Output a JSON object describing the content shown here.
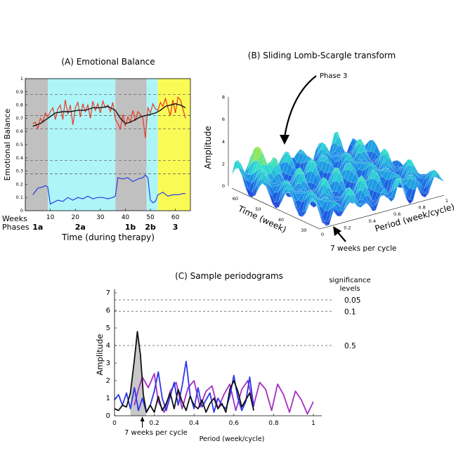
{
  "chart_data": [
    {
      "type": "line",
      "title": "(A) Emotional Balance",
      "xlabel": "Time (during therapy)",
      "ylabel": "Emotional Balance",
      "xlim": [
        0,
        66
      ],
      "ylim": [
        0,
        1
      ],
      "yticks": [
        "0",
        "0.1",
        "0.2",
        "0.3",
        "0.4",
        "0.5",
        "0.6",
        "0.7",
        "0.8",
        "0.9",
        "1"
      ],
      "xticks": [
        "10",
        "20",
        "30",
        "40",
        "50",
        "60"
      ],
      "weeks_label": "Weeks",
      "phases_label": "Phases",
      "phase_labels": [
        {
          "label": "1a",
          "center": 5
        },
        {
          "label": "2a",
          "center": 22
        },
        {
          "label": "1b",
          "center": 42
        },
        {
          "label": "2b",
          "center": 50
        },
        {
          "label": "3",
          "center": 60
        }
      ],
      "phase_bands": [
        {
          "from": 0,
          "to": 9,
          "color": "#c0c0c0"
        },
        {
          "from": 9,
          "to": 36,
          "color": "#aef5f8"
        },
        {
          "from": 36,
          "to": 48.5,
          "color": "#c0c0c0"
        },
        {
          "from": 48.5,
          "to": 53,
          "color": "#aef5f8"
        },
        {
          "from": 53,
          "to": 66,
          "color": "#fafa55"
        }
      ],
      "dashed_levels": [
        0.88,
        0.72,
        0.62,
        0.38,
        0.28
      ],
      "series": [
        {
          "name": "raw emotional balance",
          "color": "#e83a25",
          "x": [
            3,
            4,
            5,
            6,
            7,
            8,
            9,
            10,
            11,
            12,
            13,
            14,
            15,
            16,
            17,
            18,
            19,
            20,
            21,
            22,
            23,
            24,
            25,
            26,
            27,
            28,
            29,
            30,
            31,
            32,
            33,
            34,
            35,
            36,
            37,
            38,
            39,
            40,
            41,
            42,
            43,
            44,
            45,
            46,
            47,
            48,
            49,
            50,
            51,
            52,
            53,
            54,
            55,
            56,
            57,
            58,
            59,
            60,
            61,
            62,
            63,
            64
          ],
          "values": [
            0.66,
            0.67,
            0.62,
            0.7,
            0.67,
            0.74,
            0.71,
            0.75,
            0.78,
            0.69,
            0.77,
            0.8,
            0.69,
            0.84,
            0.73,
            0.8,
            0.65,
            0.78,
            0.82,
            0.71,
            0.81,
            0.75,
            0.8,
            0.7,
            0.83,
            0.76,
            0.81,
            0.74,
            0.83,
            0.78,
            0.8,
            0.75,
            0.82,
            0.69,
            0.66,
            0.62,
            0.73,
            0.64,
            0.71,
            0.67,
            0.76,
            0.68,
            0.75,
            0.73,
            0.7,
            0.55,
            0.78,
            0.74,
            0.81,
            0.77,
            0.76,
            0.82,
            0.79,
            0.85,
            0.78,
            0.72,
            0.84,
            0.74,
            0.86,
            0.84,
            0.77,
            0.7
          ]
        },
        {
          "name": "smoothed",
          "color": "#111111",
          "x": [
            3,
            6,
            9,
            12,
            15,
            18,
            21,
            24,
            27,
            30,
            33,
            36,
            38,
            40,
            42,
            44,
            46,
            48,
            50,
            52,
            54,
            56,
            58,
            60,
            62,
            64
          ],
          "values": [
            0.64,
            0.66,
            0.7,
            0.74,
            0.75,
            0.75,
            0.76,
            0.76,
            0.78,
            0.78,
            0.79,
            0.76,
            0.7,
            0.66,
            0.67,
            0.69,
            0.71,
            0.72,
            0.73,
            0.74,
            0.76,
            0.79,
            0.8,
            0.81,
            0.8,
            0.78
          ]
        },
        {
          "name": "blue measure",
          "color": "#2640e0",
          "x": [
            3,
            5,
            7,
            8,
            9,
            10,
            11,
            13,
            15,
            17,
            19,
            21,
            23,
            25,
            27,
            29,
            31,
            33,
            35,
            36,
            37,
            39,
            41,
            43,
            45,
            47,
            48,
            49,
            50,
            51,
            52,
            53,
            55,
            57,
            59,
            61,
            63,
            64
          ],
          "values": [
            0.12,
            0.17,
            0.18,
            0.19,
            0.18,
            0.05,
            0.06,
            0.08,
            0.07,
            0.1,
            0.08,
            0.1,
            0.09,
            0.11,
            0.09,
            0.1,
            0.1,
            0.09,
            0.1,
            0.11,
            0.25,
            0.24,
            0.25,
            0.22,
            0.24,
            0.25,
            0.27,
            0.25,
            0.08,
            0.06,
            0.07,
            0.12,
            0.14,
            0.11,
            0.12,
            0.12,
            0.13,
            0.13
          ]
        }
      ]
    },
    {
      "type": "surface",
      "title": "(B) Sliding Lomb-Scargle transform",
      "zlabel": "Amplitude",
      "xlabel": "Period (week/cycle)",
      "ylabel": "Time (week)",
      "zticks": [
        "0",
        "2",
        "4",
        "6",
        "8"
      ],
      "period_ticks": [
        "0",
        "0.2",
        "0.4",
        "0.6",
        "0.8",
        "1"
      ],
      "time_ticks": [
        "60",
        "50",
        "40",
        "30"
      ],
      "annotations": [
        "Phase 3",
        "7 weeks per cycle"
      ]
    },
    {
      "type": "line",
      "title": "(C) Sample periodograms",
      "xlabel": "Period (week/cycle)",
      "ylabel": "Amplitude",
      "xlim": [
        0,
        1
      ],
      "ylim": [
        0,
        7
      ],
      "xticks": [
        "0",
        "0.2",
        "0.4",
        "0.6",
        "0.8",
        "1"
      ],
      "yticks": [
        "0",
        "1",
        "2",
        "3",
        "4",
        "5",
        "6",
        "7"
      ],
      "significance_header": "significance",
      "significance_header2": "levels",
      "significance_levels": [
        {
          "label": "0.05",
          "value": 6.6
        },
        {
          "label": "0.1",
          "value": 5.95
        },
        {
          "label": "0.5",
          "value": 4.0
        }
      ],
      "annotation": "7 weeks per cycle",
      "annotation_x": 0.14,
      "series": [
        {
          "name": "purple periodogram",
          "color": "#a52fc4",
          "x": [
            0.1,
            0.12,
            0.14,
            0.17,
            0.2,
            0.22,
            0.25,
            0.28,
            0.31,
            0.34,
            0.37,
            0.4,
            0.43,
            0.46,
            0.49,
            0.52,
            0.55,
            0.58,
            0.61,
            0.64,
            0.67,
            0.7,
            0.73,
            0.76,
            0.79,
            0.82,
            0.85,
            0.88,
            0.91,
            0.94,
            0.97,
            1.0
          ],
          "values": [
            0.6,
            1.5,
            2.2,
            1.6,
            2.4,
            0.8,
            0.2,
            1.4,
            1.9,
            0.4,
            1.6,
            2.0,
            0.5,
            1.4,
            1.7,
            0.4,
            1.2,
            1.8,
            0.3,
            1.5,
            2.0,
            0.6,
            1.9,
            1.5,
            0.3,
            1.8,
            1.2,
            0.2,
            1.4,
            0.9,
            0.1,
            0.8
          ]
        },
        {
          "name": "blue periodogram",
          "color": "#2e36e8",
          "x": [
            0.0,
            0.02,
            0.04,
            0.06,
            0.08,
            0.1,
            0.12,
            0.14,
            0.16,
            0.18,
            0.2,
            0.22,
            0.24,
            0.26,
            0.28,
            0.3,
            0.32,
            0.34,
            0.36,
            0.38,
            0.4,
            0.42,
            0.44,
            0.46,
            0.48,
            0.5,
            0.52,
            0.54,
            0.56,
            0.58,
            0.6,
            0.62,
            0.64,
            0.66,
            0.68,
            0.7
          ],
          "values": [
            0.9,
            1.2,
            0.6,
            1.3,
            0.4,
            1.6,
            0.3,
            1.0,
            0.2,
            0.6,
            1.4,
            2.5,
            1.0,
            0.3,
            1.1,
            1.9,
            0.6,
            1.7,
            3.1,
            1.2,
            0.4,
            1.6,
            0.5,
            0.9,
            1.3,
            0.2,
            1.0,
            0.6,
            0.4,
            1.1,
            2.3,
            1.0,
            0.3,
            0.8,
            2.2,
            0.5
          ]
        },
        {
          "name": "black periodogram",
          "color": "#111111",
          "x": [
            0.0,
            0.02,
            0.04,
            0.06,
            0.08,
            0.1,
            0.115,
            0.13,
            0.145,
            0.16,
            0.18,
            0.2,
            0.22,
            0.24,
            0.26,
            0.28,
            0.3,
            0.32,
            0.34,
            0.36,
            0.38,
            0.4,
            0.42,
            0.44,
            0.46,
            0.48,
            0.5,
            0.52,
            0.54,
            0.56,
            0.58,
            0.6,
            0.62,
            0.64,
            0.66,
            0.68,
            0.7
          ],
          "values": [
            0.4,
            0.3,
            0.6,
            0.5,
            1.3,
            3.2,
            4.8,
            3.5,
            1.2,
            0.2,
            0.6,
            0.2,
            1.1,
            0.3,
            0.7,
            1.3,
            0.4,
            1.5,
            0.8,
            0.3,
            1.1,
            0.6,
            0.4,
            0.9,
            0.2,
            0.7,
            1.0,
            0.4,
            0.7,
            0.2,
            1.5,
            2.0,
            1.4,
            0.5,
            0.9,
            1.3,
            0.3
          ]
        }
      ]
    }
  ]
}
